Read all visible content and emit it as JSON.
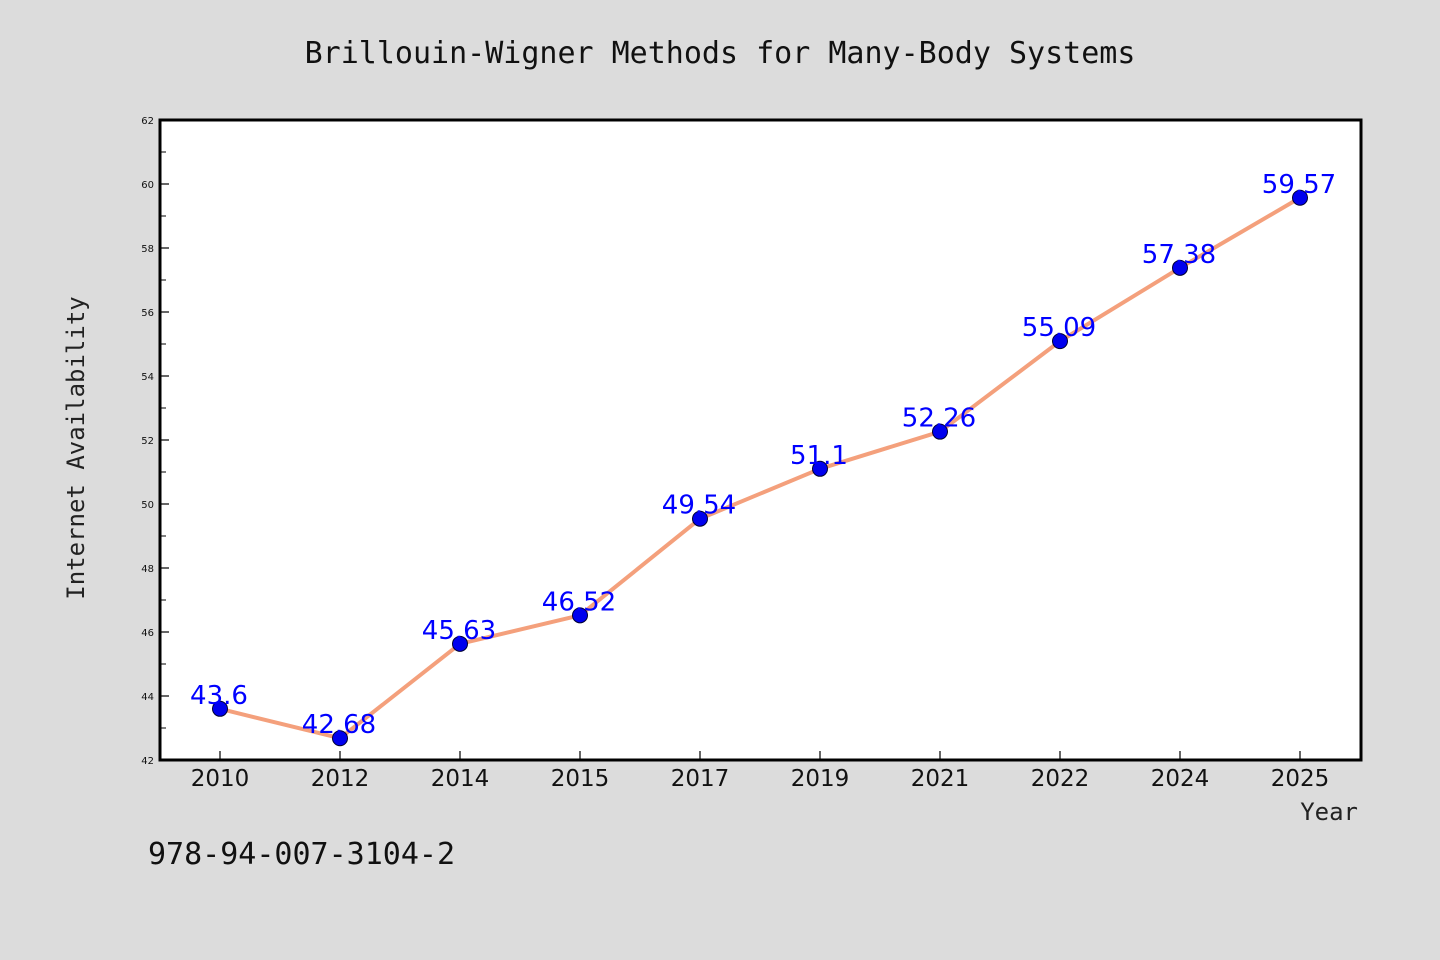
{
  "chart_data": {
    "type": "line",
    "title": "Brillouin-Wigner Methods for Many-Body Systems",
    "xlabel": "Year",
    "ylabel": "Internet Availability",
    "categories": [
      "2010",
      "2012",
      "2014",
      "2015",
      "2017",
      "2019",
      "2021",
      "2022",
      "2024",
      "2025"
    ],
    "series": [
      {
        "values": [
          43.6,
          42.68,
          45.63,
          46.52,
          49.54,
          51.1,
          52.26,
          55.09,
          57.38,
          59.57
        ],
        "data_labels": [
          "43.6",
          "42.68",
          "45.63",
          "46.52",
          "49.54",
          "51.1",
          "52.26",
          "55.09",
          "57.38",
          "59.57"
        ]
      }
    ],
    "ylim": [
      42,
      62
    ],
    "yticks": [
      "42",
      "44",
      "46",
      "48",
      "50",
      "52",
      "54",
      "56",
      "58",
      "60",
      "62"
    ],
    "grid": false,
    "legend": "none",
    "colors": {
      "line": "#f4a07c",
      "marker": "#0000ee",
      "label": "#0000ff",
      "background": "#dcdcdc",
      "plot_background": "#ffffff"
    }
  },
  "footer": {
    "isbn": "978-94-007-3104-2"
  }
}
